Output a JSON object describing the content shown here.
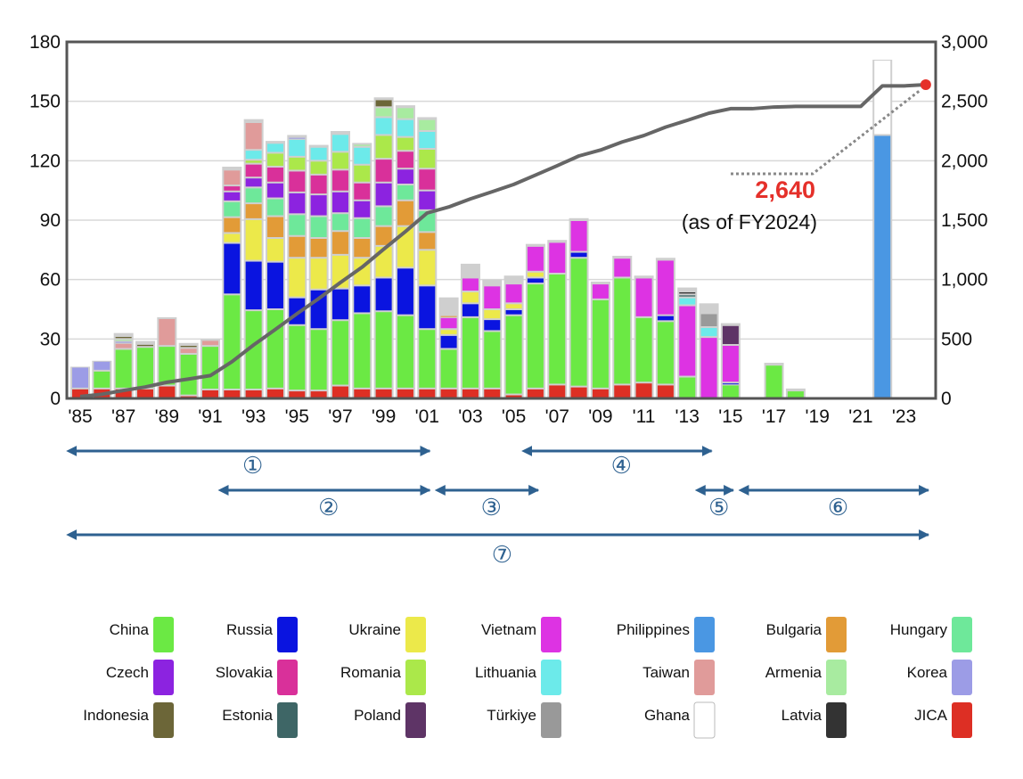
{
  "chart_data": {
    "type": "bar",
    "subtype": "stacked-bar-with-cumulative-line",
    "left_axis": {
      "ylim": [
        0,
        180
      ],
      "ticks": [
        0,
        30,
        60,
        90,
        120,
        150,
        180
      ]
    },
    "right_axis": {
      "ylim": [
        0,
        3000
      ],
      "ticks": [
        "0",
        "500",
        "1,000",
        "1,500",
        "2,000",
        "2,500",
        "3,000"
      ],
      "tick_values": [
        0,
        500,
        1000,
        1500,
        2000,
        2500,
        3000
      ]
    },
    "x_tick_labels": [
      {
        "year": 1985,
        "label": "'85"
      },
      {
        "year": 1987,
        "label": "'87"
      },
      {
        "year": 1989,
        "label": "'89"
      },
      {
        "year": 1991,
        "label": "'91"
      },
      {
        "year": 1993,
        "label": "'93"
      },
      {
        "year": 1995,
        "label": "'95"
      },
      {
        "year": 1997,
        "label": "'97"
      },
      {
        "year": 1999,
        "label": "'99"
      },
      {
        "year": 2001,
        "label": "'01"
      },
      {
        "year": 2003,
        "label": "'03"
      },
      {
        "year": 2005,
        "label": "'05"
      },
      {
        "year": 2007,
        "label": "'07"
      },
      {
        "year": 2009,
        "label": "'09"
      },
      {
        "year": 2011,
        "label": "'11"
      },
      {
        "year": 2013,
        "label": "'13"
      },
      {
        "year": 2015,
        "label": "'15"
      },
      {
        "year": 2017,
        "label": "'17"
      },
      {
        "year": 2019,
        "label": "'19"
      },
      {
        "year": 2021,
        "label": "'21"
      },
      {
        "year": 2023,
        "label": "'23"
      }
    ],
    "grid": true,
    "colors": {
      "China": "#6be944",
      "Russia": "#0a14e0",
      "Ukraine": "#ece94a",
      "Vietnam": "#dd33e3",
      "Philippines": "#4a97e3",
      "Bulgaria": "#e29b37",
      "Hungary": "#6ee89a",
      "Czech": "#8c23e0",
      "Slovakia": "#d9309a",
      "Romania": "#abe84a",
      "Lithuania": "#6ceaea",
      "Taiwan": "#e09b9a",
      "Armenia": "#a8eba0",
      "Korea": "#9c9ce6",
      "Indonesia": "#6c6638",
      "Estonia": "#3e6666",
      "Poland": "#5e3466",
      "Türkiye": "#999999",
      "Ghana": "#ffffff",
      "Latvia": "#333333",
      "JICA": "#dd2f24"
    },
    "legend": [
      [
        "China",
        "Russia",
        "Ukraine",
        "Vietnam",
        "Philippines",
        "Bulgaria",
        "Hungary"
      ],
      [
        "Czech",
        "Slovakia",
        "Romania",
        "Lithuania",
        "Taiwan",
        "Armenia",
        "Korea"
      ],
      [
        "Indonesia",
        "Estonia",
        "Poland",
        "Türkiye",
        "Ghana",
        "Latvia",
        "JICA"
      ]
    ],
    "bars": [
      {
        "year": 1985,
        "total": 16,
        "segments": [
          [
            "JICA",
            5
          ],
          [
            "Korea",
            11
          ]
        ]
      },
      {
        "year": 1986,
        "total": 19,
        "segments": [
          [
            "JICA",
            5
          ],
          [
            "China",
            9
          ],
          [
            "Korea",
            5
          ]
        ]
      },
      {
        "year": 1987,
        "total": 33,
        "segments": [
          [
            "JICA",
            5
          ],
          [
            "China",
            20
          ],
          [
            "Taiwan",
            3
          ],
          [
            "Korea",
            1
          ],
          [
            "Armenia",
            1
          ],
          [
            "Indonesia",
            1.5
          ]
        ]
      },
      {
        "year": 1988,
        "total": 29,
        "segments": [
          [
            "JICA",
            5
          ],
          [
            "China",
            21
          ],
          [
            "Indonesia",
            1.5
          ]
        ]
      },
      {
        "year": 1989,
        "total": 41,
        "segments": [
          [
            "JICA",
            6.5
          ],
          [
            "China",
            20
          ],
          [
            "Taiwan",
            14
          ]
        ]
      },
      {
        "year": 1990,
        "total": 28,
        "segments": [
          [
            "JICA",
            1.5
          ],
          [
            "China",
            21
          ],
          [
            "Taiwan",
            3
          ],
          [
            "Indonesia",
            1.5
          ]
        ]
      },
      {
        "year": 1991,
        "total": 30,
        "segments": [
          [
            "JICA",
            4.5
          ],
          [
            "China",
            22
          ],
          [
            "Taiwan",
            3
          ]
        ]
      },
      {
        "year": 1992,
        "total": 117,
        "segments": [
          [
            "JICA",
            4.5
          ],
          [
            "China",
            48
          ],
          [
            "Russia",
            26
          ],
          [
            "Ukraine",
            5
          ],
          [
            "Bulgaria",
            8
          ],
          [
            "Hungary",
            8
          ],
          [
            "Czech",
            5
          ],
          [
            "Slovakia",
            3
          ],
          [
            "Taiwan",
            8
          ]
        ]
      },
      {
        "year": 1993,
        "total": 141,
        "segments": [
          [
            "JICA",
            4.5
          ],
          [
            "China",
            40
          ],
          [
            "Russia",
            25
          ],
          [
            "Ukraine",
            21
          ],
          [
            "Bulgaria",
            8
          ],
          [
            "Hungary",
            8
          ],
          [
            "Czech",
            5
          ],
          [
            "Slovakia",
            7
          ],
          [
            "Romania",
            2
          ],
          [
            "Lithuania",
            5
          ],
          [
            "Taiwan",
            14
          ]
        ]
      },
      {
        "year": 1994,
        "total": 130,
        "segments": [
          [
            "JICA",
            5
          ],
          [
            "China",
            40
          ],
          [
            "Russia",
            24
          ],
          [
            "Ukraine",
            12
          ],
          [
            "Bulgaria",
            11
          ],
          [
            "Hungary",
            9
          ],
          [
            "Czech",
            8
          ],
          [
            "Slovakia",
            8
          ],
          [
            "Romania",
            7
          ],
          [
            "Lithuania",
            5
          ]
        ]
      },
      {
        "year": 1995,
        "total": 133,
        "segments": [
          [
            "JICA",
            4
          ],
          [
            "China",
            33
          ],
          [
            "Russia",
            14
          ],
          [
            "Ukraine",
            20
          ],
          [
            "Bulgaria",
            11
          ],
          [
            "Hungary",
            11
          ],
          [
            "Czech",
            11
          ],
          [
            "Slovakia",
            11
          ],
          [
            "Romania",
            7
          ],
          [
            "Lithuania",
            9
          ],
          [
            "Korea",
            1
          ]
        ]
      },
      {
        "year": 1996,
        "total": 128,
        "segments": [
          [
            "JICA",
            4
          ],
          [
            "China",
            31
          ],
          [
            "Russia",
            20
          ],
          [
            "Ukraine",
            16
          ],
          [
            "Bulgaria",
            10
          ],
          [
            "Hungary",
            11
          ],
          [
            "Czech",
            11
          ],
          [
            "Slovakia",
            10
          ],
          [
            "Romania",
            7
          ],
          [
            "Lithuania",
            7
          ]
        ]
      },
      {
        "year": 1997,
        "total": 135,
        "segments": [
          [
            "JICA",
            6.5
          ],
          [
            "China",
            33
          ],
          [
            "Russia",
            16
          ],
          [
            "Ukraine",
            17
          ],
          [
            "Bulgaria",
            12
          ],
          [
            "Hungary",
            9
          ],
          [
            "Czech",
            11
          ],
          [
            "Slovakia",
            11
          ],
          [
            "Romania",
            9
          ],
          [
            "Lithuania",
            9
          ]
        ]
      },
      {
        "year": 1998,
        "total": 129,
        "segments": [
          [
            "JICA",
            5
          ],
          [
            "China",
            38
          ],
          [
            "Russia",
            14
          ],
          [
            "Ukraine",
            14
          ],
          [
            "Bulgaria",
            10
          ],
          [
            "Hungary",
            10
          ],
          [
            "Czech",
            9
          ],
          [
            "Slovakia",
            9
          ],
          [
            "Romania",
            9
          ],
          [
            "Lithuania",
            9
          ],
          [
            "Armenia",
            1.5
          ]
        ]
      },
      {
        "year": 1999,
        "total": 152,
        "segments": [
          [
            "JICA",
            5
          ],
          [
            "China",
            39
          ],
          [
            "Russia",
            17
          ],
          [
            "Ukraine",
            16
          ],
          [
            "Bulgaria",
            10
          ],
          [
            "Hungary",
            10
          ],
          [
            "Czech",
            12
          ],
          [
            "Slovakia",
            12
          ],
          [
            "Romania",
            12
          ],
          [
            "Lithuania",
            9
          ],
          [
            "Armenia",
            5
          ],
          [
            "Indonesia",
            4
          ]
        ]
      },
      {
        "year": 2000,
        "total": 148,
        "segments": [
          [
            "JICA",
            5
          ],
          [
            "China",
            37
          ],
          [
            "Russia",
            24
          ],
          [
            "Ukraine",
            21
          ],
          [
            "Bulgaria",
            13
          ],
          [
            "Hungary",
            8
          ],
          [
            "Czech",
            8
          ],
          [
            "Slovakia",
            9
          ],
          [
            "Romania",
            7
          ],
          [
            "Lithuania",
            9
          ],
          [
            "Armenia",
            6
          ]
        ]
      },
      {
        "year": 2001,
        "total": 142,
        "segments": [
          [
            "JICA",
            5
          ],
          [
            "China",
            30
          ],
          [
            "Russia",
            22
          ],
          [
            "Ukraine",
            18
          ],
          [
            "Bulgaria",
            9
          ],
          [
            "Hungary",
            11
          ],
          [
            "Czech",
            10
          ],
          [
            "Slovakia",
            11
          ],
          [
            "Romania",
            10
          ],
          [
            "Lithuania",
            9
          ],
          [
            "Armenia",
            6
          ]
        ]
      },
      {
        "year": 2002,
        "total": 51,
        "segments": [
          [
            "JICA",
            5
          ],
          [
            "China",
            20
          ],
          [
            "Russia",
            7
          ],
          [
            "Ukraine",
            3
          ],
          [
            "Vietnam",
            6
          ],
          [
            "Bulgaria",
            1
          ]
        ]
      },
      {
        "year": 2003,
        "total": 68,
        "segments": [
          [
            "JICA",
            5
          ],
          [
            "China",
            36
          ],
          [
            "Russia",
            7
          ],
          [
            "Ukraine",
            6
          ],
          [
            "Vietnam",
            7
          ]
        ]
      },
      {
        "year": 2004,
        "total": 60,
        "segments": [
          [
            "JICA",
            5
          ],
          [
            "China",
            29
          ],
          [
            "Russia",
            6
          ],
          [
            "Ukraine",
            5
          ],
          [
            "Vietnam",
            12
          ]
        ]
      },
      {
        "year": 2005,
        "total": 62,
        "segments": [
          [
            "JICA",
            2
          ],
          [
            "China",
            40
          ],
          [
            "Russia",
            3
          ],
          [
            "Ukraine",
            3
          ],
          [
            "Vietnam",
            10
          ]
        ]
      },
      {
        "year": 2006,
        "total": 78,
        "segments": [
          [
            "JICA",
            5
          ],
          [
            "China",
            53
          ],
          [
            "Russia",
            3
          ],
          [
            "Ukraine",
            3
          ],
          [
            "Vietnam",
            13
          ]
        ]
      },
      {
        "year": 2007,
        "total": 80,
        "segments": [
          [
            "JICA",
            7
          ],
          [
            "China",
            56
          ],
          [
            "Vietnam",
            16
          ]
        ]
      },
      {
        "year": 2008,
        "total": 91,
        "segments": [
          [
            "JICA",
            6
          ],
          [
            "China",
            65
          ],
          [
            "Russia",
            3
          ],
          [
            "Vietnam",
            16
          ]
        ]
      },
      {
        "year": 2009,
        "total": 59,
        "segments": [
          [
            "JICA",
            5
          ],
          [
            "China",
            45
          ],
          [
            "Vietnam",
            8
          ]
        ]
      },
      {
        "year": 2010,
        "total": 72,
        "segments": [
          [
            "JICA",
            7
          ],
          [
            "China",
            54
          ],
          [
            "Vietnam",
            10
          ]
        ]
      },
      {
        "year": 2011,
        "total": 62,
        "segments": [
          [
            "JICA",
            8
          ],
          [
            "China",
            33
          ],
          [
            "Vietnam",
            20
          ]
        ]
      },
      {
        "year": 2012,
        "total": 71,
        "segments": [
          [
            "JICA",
            7
          ],
          [
            "China",
            32
          ],
          [
            "Russia",
            3
          ],
          [
            "Vietnam",
            28
          ]
        ]
      },
      {
        "year": 2013,
        "total": 56,
        "segments": [
          [
            "China",
            11
          ],
          [
            "Vietnam",
            36
          ],
          [
            "Lithuania",
            4
          ],
          [
            "Estonia",
            1.5
          ],
          [
            "Latvia",
            1.5
          ]
        ]
      },
      {
        "year": 2014,
        "total": 48,
        "segments": [
          [
            "Vietnam",
            31
          ],
          [
            "Lithuania",
            5
          ],
          [
            "Türkiye",
            7
          ]
        ]
      },
      {
        "year": 2015,
        "total": 38,
        "segments": [
          [
            "China",
            7
          ],
          [
            "Russia",
            1
          ],
          [
            "Vietnam",
            19
          ],
          [
            "Poland",
            10
          ]
        ]
      },
      {
        "year": 2017,
        "total": 18,
        "segments": [
          [
            "China",
            17
          ]
        ]
      },
      {
        "year": 2018,
        "total": 5,
        "segments": [
          [
            "China",
            4
          ]
        ]
      },
      {
        "year": 2022,
        "total": 171,
        "segments": [
          [
            "Philippines",
            133
          ],
          [
            "Ghana",
            38
          ]
        ]
      }
    ],
    "cumulative_line": {
      "years": [
        1985,
        1986,
        1987,
        1988,
        1989,
        1990,
        1991,
        1992,
        1993,
        1994,
        1995,
        1996,
        1997,
        1998,
        1999,
        2000,
        2001,
        2002,
        2003,
        2004,
        2005,
        2006,
        2007,
        2008,
        2009,
        2010,
        2011,
        2012,
        2013,
        2014,
        2015,
        2016,
        2017,
        2018,
        2019,
        2020,
        2021,
        2022,
        2023,
        2024
      ],
      "values": [
        16,
        35,
        67,
        96,
        136,
        163,
        192,
        309,
        450,
        580,
        713,
        840,
        975,
        1104,
        1256,
        1404,
        1560,
        1611,
        1679,
        1739,
        1801,
        1879,
        1958,
        2040,
        2090,
        2158,
        2212,
        2283,
        2340,
        2400,
        2438,
        2438,
        2452,
        2457,
        2457,
        2457,
        2457,
        2630,
        2630,
        2640
      ]
    },
    "annotation": {
      "value": "2,640",
      "note": "(as of FY2024)",
      "year": 2024
    },
    "periods": [
      {
        "label": "①",
        "from": 1985,
        "to": 2001,
        "row": 0
      },
      {
        "label": "④",
        "from": 2006,
        "to": 2014,
        "row": 0
      },
      {
        "label": "②",
        "from": 1992,
        "to": 2001,
        "row": 1
      },
      {
        "label": "③",
        "from": 2002,
        "to": 2006,
        "row": 1
      },
      {
        "label": "⑤",
        "from": 2014,
        "to": 2015,
        "row": 1
      },
      {
        "label": "⑥",
        "from": 2016,
        "to": 2024,
        "row": 1
      },
      {
        "label": "⑦",
        "from": 1985,
        "to": 2024,
        "row": 2
      }
    ]
  }
}
